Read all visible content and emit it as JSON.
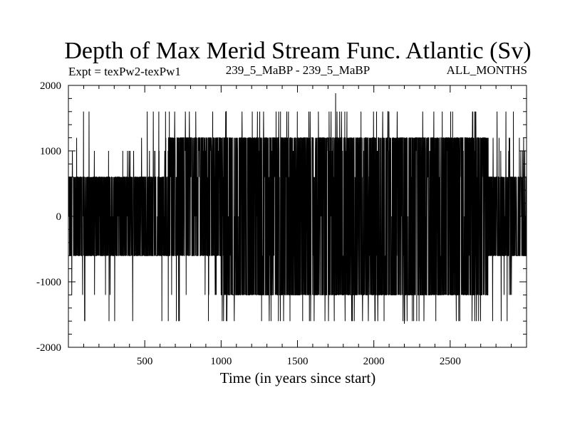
{
  "chart_data": {
    "type": "line",
    "title": "Depth of Max Merid Stream Func. Atlantic (Sv)",
    "subtitle_left": "Expt = texPw2-texPw1",
    "subtitle_center": "239_5_MaBP - 239_5_MaBP",
    "subtitle_right": "ALL_MONTHS",
    "xlabel": "Time (in years since start)",
    "ylabel": "",
    "xlim": [
      0,
      3000
    ],
    "ylim": [
      -2000,
      2000
    ],
    "xticks": [
      500,
      1000,
      1500,
      2000,
      2500
    ],
    "xtick_labels": [
      "500",
      "1000",
      "1500",
      "2000",
      "2500"
    ],
    "yticks": [
      2000,
      1000,
      0,
      -1000,
      -2000
    ],
    "ytick_labels": [
      "2000",
      "1000",
      "0",
      "-1000",
      "-2000"
    ],
    "grid": false,
    "legend": "none",
    "series": [
      {
        "color": "#000000",
        "band_segments": [
          {
            "x_start": 0,
            "x_end": 650,
            "low": -600,
            "high": 600
          },
          {
            "x_start": 650,
            "x_end": 1000,
            "low": -600,
            "high": 1200
          },
          {
            "x_start": 1000,
            "x_end": 2750,
            "low": -1200,
            "high": 1200
          },
          {
            "x_start": 2750,
            "x_end": 3000,
            "low": -600,
            "high": 600
          }
        ],
        "levels": [
          -1600,
          -1200,
          -600,
          0,
          600,
          1000,
          1200,
          1600
        ],
        "max": {
          "x": 1750,
          "y": 1880
        },
        "min": {
          "x": 2200,
          "y": -1640
        }
      }
    ]
  }
}
